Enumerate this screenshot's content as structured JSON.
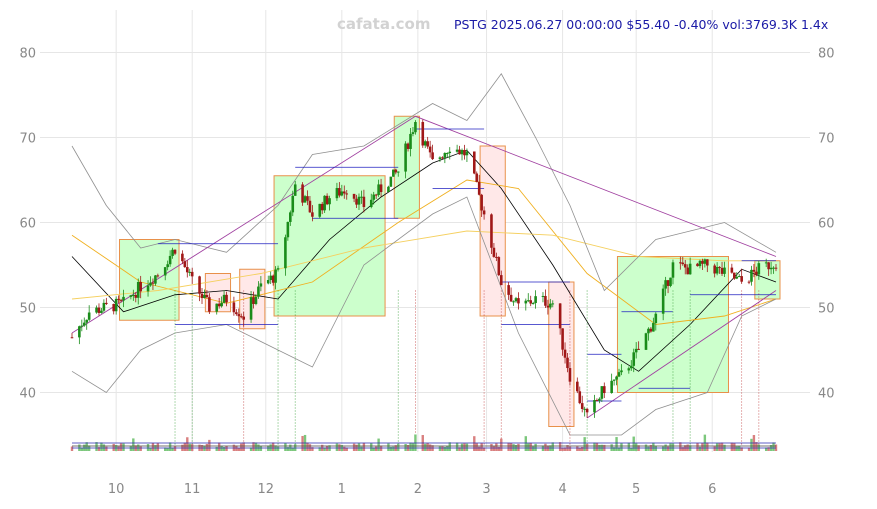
{
  "header": {
    "watermark": "cafata.com",
    "info": "PSTG 2025.06.27 00:00:00 $55.40 -0.40% vol:3769.3K 1.4x"
  },
  "colors": {
    "up_candle": "#1a8c1a",
    "down_candle": "#a01818",
    "highlight_candle": "#1a1acc",
    "bull_zone": "#ccffcc",
    "bear_zone": "#ffe8e8",
    "zone_border": "#e8904a",
    "ma_fast": "#000000",
    "ma_slow": "#f0b020",
    "ma_long": "#f5d060",
    "bollinger": "#909090",
    "trendline": "#a040a0",
    "level_line": "#2020c0",
    "header_text": "#1a1aa6",
    "grid": "#e6e6e6",
    "tick_text": "#888888"
  },
  "chart_data": {
    "type": "candlestick",
    "symbol": "PSTG",
    "ylim": [
      33,
      85
    ],
    "yticks": [
      40,
      50,
      60,
      70,
      80
    ],
    "xticks": [
      "10",
      "11",
      "12",
      "1",
      "2",
      "3",
      "4",
      "5",
      "6"
    ],
    "grid": true,
    "series": [
      {
        "kind": "close_path",
        "points": [
          [
            "2024-09-13",
            46.5
          ],
          [
            "2024-09-20",
            49.5
          ],
          [
            "2024-09-27",
            50.0
          ],
          [
            "2024-10-04",
            50.5
          ],
          [
            "2024-10-11",
            52.5
          ],
          [
            "2024-10-18",
            54.0
          ],
          [
            "2024-10-25",
            57.0
          ],
          [
            "2024-11-01",
            53.0
          ],
          [
            "2024-11-08",
            50.0
          ],
          [
            "2024-11-15",
            51.0
          ],
          [
            "2024-11-22",
            49.0
          ],
          [
            "2024-11-29",
            52.5
          ],
          [
            "2024-12-06",
            54.0
          ],
          [
            "2024-12-13",
            64.5
          ],
          [
            "2024-12-20",
            61.0
          ],
          [
            "2024-12-27",
            63.0
          ],
          [
            "2025-01-03",
            64.0
          ],
          [
            "2025-01-10",
            62.0
          ],
          [
            "2025-01-17",
            64.0
          ],
          [
            "2025-01-24",
            66.0
          ],
          [
            "2025-01-31",
            72.0
          ],
          [
            "2025-02-07",
            67.0
          ],
          [
            "2025-02-14",
            69.0
          ],
          [
            "2025-02-21",
            68.0
          ],
          [
            "2025-02-28",
            61.0
          ],
          [
            "2025-03-07",
            53.0
          ],
          [
            "2025-03-14",
            50.0
          ],
          [
            "2025-03-21",
            51.0
          ],
          [
            "2025-03-28",
            50.5
          ],
          [
            "2025-04-04",
            42.0
          ],
          [
            "2025-04-11",
            37.0
          ],
          [
            "2025-04-18",
            40.5
          ],
          [
            "2025-04-25",
            42.0
          ],
          [
            "2025-05-02",
            45.0
          ],
          [
            "2025-05-09",
            49.0
          ],
          [
            "2025-05-16",
            55.0
          ],
          [
            "2025-05-23",
            54.5
          ],
          [
            "2025-05-30",
            55.0
          ],
          [
            "2025-06-06",
            54.0
          ],
          [
            "2025-06-13",
            53.0
          ],
          [
            "2025-06-20",
            54.5
          ],
          [
            "2025-06-27",
            55.4
          ]
        ]
      },
      {
        "kind": "moving_average_fast",
        "points": [
          [
            "2024-09-13",
            56.0
          ],
          [
            "2024-10-04",
            49.5
          ],
          [
            "2024-10-25",
            51.5
          ],
          [
            "2024-11-15",
            52.0
          ],
          [
            "2024-12-06",
            51.0
          ],
          [
            "2024-12-27",
            58.0
          ],
          [
            "2025-01-17",
            63.0
          ],
          [
            "2025-02-07",
            67.0
          ],
          [
            "2025-02-21",
            68.5
          ],
          [
            "2025-03-07",
            64.0
          ],
          [
            "2025-03-28",
            55.0
          ],
          [
            "2025-04-18",
            45.0
          ],
          [
            "2025-05-02",
            42.5
          ],
          [
            "2025-05-23",
            48.0
          ],
          [
            "2025-06-13",
            54.5
          ],
          [
            "2025-06-27",
            53.0
          ]
        ]
      },
      {
        "kind": "moving_average_slow",
        "points": [
          [
            "2024-09-13",
            58.5
          ],
          [
            "2024-10-11",
            53.0
          ],
          [
            "2024-11-15",
            50.5
          ],
          [
            "2024-12-20",
            53.0
          ],
          [
            "2025-01-24",
            60.0
          ],
          [
            "2025-02-21",
            65.0
          ],
          [
            "2025-03-14",
            64.0
          ],
          [
            "2025-04-11",
            54.0
          ],
          [
            "2025-05-09",
            48.0
          ],
          [
            "2025-06-06",
            49.0
          ],
          [
            "2025-06-27",
            51.0
          ]
        ]
      },
      {
        "kind": "moving_average_long",
        "points": [
          [
            "2024-09-13",
            51.0
          ],
          [
            "2024-10-18",
            52.0
          ],
          [
            "2024-11-29",
            54.0
          ],
          [
            "2025-01-10",
            57.0
          ],
          [
            "2025-02-21",
            59.0
          ],
          [
            "2025-03-28",
            58.5
          ],
          [
            "2025-05-02",
            56.0
          ],
          [
            "2025-06-06",
            55.5
          ],
          [
            "2025-06-27",
            55.5
          ]
        ]
      },
      {
        "kind": "bollinger_upper",
        "points": [
          [
            "2024-09-13",
            69.0
          ],
          [
            "2024-09-27",
            62.0
          ],
          [
            "2024-10-11",
            57.0
          ],
          [
            "2024-10-25",
            58.0
          ],
          [
            "2024-11-15",
            56.5
          ],
          [
            "2024-12-06",
            62.0
          ],
          [
            "2024-12-20",
            68.0
          ],
          [
            "2025-01-10",
            69.0
          ],
          [
            "2025-02-07",
            74.0
          ],
          [
            "2025-02-21",
            72.0
          ],
          [
            "2025-03-07",
            77.5
          ],
          [
            "2025-03-21",
            70.0
          ],
          [
            "2025-04-04",
            62.0
          ],
          [
            "2025-04-18",
            52.0
          ],
          [
            "2025-05-09",
            58.0
          ],
          [
            "2025-06-06",
            60.0
          ],
          [
            "2025-06-27",
            56.5
          ]
        ]
      },
      {
        "kind": "bollinger_lower",
        "points": [
          [
            "2024-09-13",
            42.5
          ],
          [
            "2024-09-27",
            40.0
          ],
          [
            "2024-10-11",
            45.0
          ],
          [
            "2024-10-25",
            47.0
          ],
          [
            "2024-11-15",
            48.0
          ],
          [
            "2024-12-06",
            45.0
          ],
          [
            "2024-12-20",
            43.0
          ],
          [
            "2025-01-10",
            55.0
          ],
          [
            "2025-02-07",
            61.0
          ],
          [
            "2025-02-21",
            63.0
          ],
          [
            "2025-03-14",
            47.0
          ],
          [
            "2025-04-04",
            35.0
          ],
          [
            "2025-04-25",
            35.0
          ],
          [
            "2025-05-09",
            38.0
          ],
          [
            "2025-05-30",
            40.0
          ],
          [
            "2025-06-13",
            49.0
          ],
          [
            "2025-06-27",
            51.0
          ]
        ]
      },
      {
        "kind": "trendline",
        "points": [
          [
            "2024-09-13",
            47.0
          ],
          [
            "2025-01-31",
            72.5
          ],
          [
            "2025-06-27",
            56.0
          ]
        ]
      },
      {
        "kind": "trendline",
        "points": [
          [
            "2025-04-11",
            37.0
          ],
          [
            "2025-06-27",
            52.0
          ]
        ]
      }
    ],
    "zones": [
      {
        "type": "bull",
        "start": "2024-10-04",
        "end": "2024-10-25",
        "low": 48.5,
        "high": 58.0
      },
      {
        "type": "bear",
        "start": "2024-11-08",
        "end": "2024-11-15",
        "low": 49.5,
        "high": 54.0
      },
      {
        "type": "bear",
        "start": "2024-11-22",
        "end": "2024-11-29",
        "low": 47.5,
        "high": 54.5
      },
      {
        "type": "bull",
        "start": "2024-12-06",
        "end": "2025-01-17",
        "low": 49.0,
        "high": 65.5
      },
      {
        "type": "bull",
        "start": "2025-01-24",
        "end": "2025-01-31",
        "low": 60.5,
        "high": 72.5
      },
      {
        "type": "bear",
        "start": "2025-02-28",
        "end": "2025-03-07",
        "low": 49.0,
        "high": 69.0
      },
      {
        "type": "bear",
        "start": "2025-03-28",
        "end": "2025-04-04",
        "low": 36.0,
        "high": 53.0
      },
      {
        "type": "bull",
        "start": "2025-04-25",
        "end": "2025-06-06",
        "low": 40.0,
        "high": 56.0
      },
      {
        "type": "bull",
        "start": "2025-06-20",
        "end": "2025-06-27",
        "low": 51.0,
        "high": 55.5
      }
    ],
    "levels": [
      {
        "start": "2024-10-18",
        "end": "2024-12-06",
        "value": 57.5
      },
      {
        "start": "2024-10-25",
        "end": "2024-12-06",
        "value": 48.0
      },
      {
        "start": "2024-12-13",
        "end": "2025-01-24",
        "value": 66.5
      },
      {
        "start": "2024-12-20",
        "end": "2025-01-24",
        "value": 60.5
      },
      {
        "start": "2025-01-31",
        "end": "2025-02-28",
        "value": 71.0
      },
      {
        "start": "2025-02-07",
        "end": "2025-02-28",
        "value": 64.0
      },
      {
        "start": "2025-03-07",
        "end": "2025-04-04",
        "value": 53.0
      },
      {
        "start": "2025-03-07",
        "end": "2025-04-04",
        "value": 48.0
      },
      {
        "start": "2025-04-11",
        "end": "2025-04-25",
        "value": 44.5
      },
      {
        "start": "2025-04-11",
        "end": "2025-04-25",
        "value": 39.0
      },
      {
        "start": "2025-04-25",
        "end": "2025-05-16",
        "value": 49.5
      },
      {
        "start": "2025-05-02",
        "end": "2025-05-23",
        "value": 40.5
      },
      {
        "start": "2025-05-23",
        "end": "2025-06-27",
        "value": 51.5
      },
      {
        "start": "2025-06-13",
        "end": "2025-06-27",
        "value": 55.5
      }
    ],
    "event_markers": [
      {
        "date": "2024-10-25",
        "kind": "bull"
      },
      {
        "date": "2024-11-01",
        "kind": "bull"
      },
      {
        "date": "2024-12-06",
        "kind": "bull"
      },
      {
        "date": "2024-11-22",
        "kind": "bear"
      },
      {
        "date": "2024-12-13",
        "kind": "bull"
      },
      {
        "date": "2025-01-24",
        "kind": "bull"
      },
      {
        "date": "2025-01-31",
        "kind": "bear"
      },
      {
        "date": "2025-02-28",
        "kind": "bear"
      },
      {
        "date": "2025-03-07",
        "kind": "bear"
      },
      {
        "date": "2025-04-04",
        "kind": "bear"
      },
      {
        "date": "2025-04-11",
        "kind": "bull"
      },
      {
        "date": "2025-05-16",
        "kind": "bull"
      },
      {
        "date": "2025-05-23",
        "kind": "bull"
      },
      {
        "date": "2025-06-13",
        "kind": "bear"
      },
      {
        "date": "2025-06-20",
        "kind": "bear"
      }
    ]
  }
}
